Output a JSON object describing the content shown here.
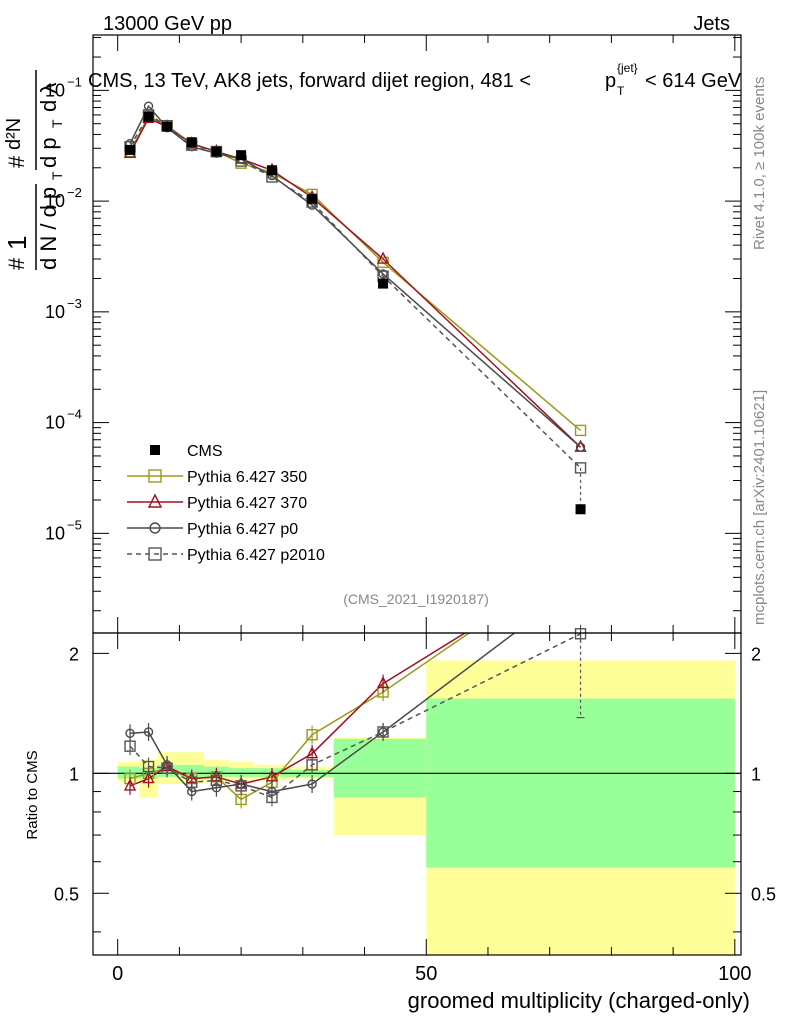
{
  "header": {
    "left": "13000 GeV pp",
    "right": "Jets"
  },
  "side_labels": {
    "rivet": "Rivet 4.1.0, ≥ 100k events",
    "mcplots": "mcplots.cern.ch [arXiv:2401.10621]"
  },
  "chart_data": {
    "type": "line",
    "title_main": "CMS, 13 TeV, AK8 jets, forward dijet region, 481 <",
    "title_pt": "p",
    "title_sub": "T",
    "title_sup": "{jet}",
    "title_end": "< 614 GeV",
    "ylabel_parts": {
      "one": "1",
      "hash": "#",
      "dN": "d N / d p",
      "T": "T",
      "hash2": "#",
      "d2N": "d²N",
      "dpT": "d p",
      "T2": "T",
      "dl": "d λ"
    },
    "xlabel": "groomed multiplicity (charged-only)",
    "ratio_ylabel": "Ratio to CMS",
    "analysis_id": "(CMS_2021_I1920187)",
    "xlim": [
      -4,
      101
    ],
    "main_ylim_log10": [
      -5.9,
      -0.5
    ],
    "ratio_ylim": [
      0.35,
      2.25
    ],
    "x_ticks": [
      0,
      50,
      100
    ],
    "x_tick_labels": [
      "0",
      "50",
      "100"
    ],
    "y_tick_labels": [
      "10",
      "10",
      "10",
      "10",
      "10"
    ],
    "y_tick_exponents": [
      "−1",
      "−2",
      "−3",
      "−4",
      "−5"
    ],
    "y_ticks_log10": [
      -1,
      -2,
      -3,
      -4,
      -5
    ],
    "ratio_ticks": [
      0.5,
      1,
      2
    ],
    "ratio_tick_labels": [
      "0.5",
      "1",
      "2"
    ],
    "x": [
      2,
      5,
      8,
      12,
      16,
      20,
      25,
      31.5,
      43,
      75
    ],
    "bins": [
      [
        0,
        3.5
      ],
      [
        3.5,
        6.5
      ],
      [
        6.5,
        10
      ],
      [
        10,
        14
      ],
      [
        14,
        18
      ],
      [
        18,
        22
      ],
      [
        22,
        28
      ],
      [
        28,
        35
      ],
      [
        35,
        50
      ],
      [
        50,
        100
      ]
    ],
    "data": {
      "name": "CMS",
      "values": [
        0.029,
        0.058,
        0.047,
        0.034,
        0.028,
        0.026,
        0.019,
        0.0105,
        0.0018,
        1.65e-05
      ]
    },
    "band_yellow": [
      [
        0.95,
        1.07
      ],
      [
        0.87,
        1.08
      ],
      [
        0.94,
        1.13
      ],
      [
        0.94,
        1.13
      ],
      [
        0.95,
        1.08
      ],
      [
        0.96,
        1.07
      ],
      [
        0.96,
        1.05
      ],
      [
        0.97,
        1.04
      ],
      [
        0.7,
        1.23
      ],
      [
        0.35,
        1.92
      ]
    ],
    "band_green": [
      [
        0.97,
        1.04
      ],
      [
        0.97,
        1.03
      ],
      [
        0.98,
        1.05
      ],
      [
        0.98,
        1.05
      ],
      [
        0.98,
        1.04
      ],
      [
        0.98,
        1.03
      ],
      [
        0.98,
        1.03
      ],
      [
        0.98,
        1.02
      ],
      [
        0.87,
        1.22
      ],
      [
        0.58,
        1.54
      ]
    ],
    "series": [
      {
        "name": "Pythia 6.427 350",
        "color": "#9a9a1a",
        "marker": "square-open",
        "dash": "",
        "values": [
          0.028,
          0.058,
          0.048,
          0.033,
          0.028,
          0.022,
          0.018,
          0.0115,
          0.0028,
          8.5e-05
        ],
        "ratio": [
          0.97,
          1.0,
          1.03,
          0.97,
          0.98,
          0.86,
          0.95,
          1.25,
          1.6,
          3.5
        ]
      },
      {
        "name": "Pythia 6.427 370",
        "color": "#a01020",
        "marker": "triangle-open",
        "dash": "",
        "values": [
          0.027,
          0.056,
          0.047,
          0.033,
          0.028,
          0.024,
          0.019,
          0.0108,
          0.003,
          6e-05
        ],
        "ratio": [
          0.93,
          0.97,
          1.04,
          0.97,
          0.98,
          0.94,
          0.98,
          1.12,
          1.68,
          3.4
        ]
      },
      {
        "name": "Pythia 6.427 p0",
        "color": "#4a4a4a",
        "marker": "circle-open",
        "dash": "",
        "values": [
          0.033,
          0.072,
          0.046,
          0.031,
          0.027,
          0.024,
          0.017,
          0.0092,
          0.0022,
          6e-05
        ],
        "ratio": [
          1.26,
          1.27,
          1.05,
          0.9,
          0.92,
          0.94,
          0.9,
          0.94,
          1.27,
          3.0
        ]
      },
      {
        "name": "Pythia 6.427 p2010",
        "color": "#555555",
        "marker": "square-open",
        "dash": "5,4",
        "values": [
          0.031,
          0.06,
          0.048,
          0.032,
          0.028,
          0.023,
          0.0165,
          0.0098,
          0.0021,
          3.9e-05
        ],
        "ratio": [
          1.17,
          1.04,
          1.03,
          0.95,
          0.96,
          0.93,
          0.87,
          1.05,
          1.27,
          2.24
        ]
      }
    ]
  }
}
